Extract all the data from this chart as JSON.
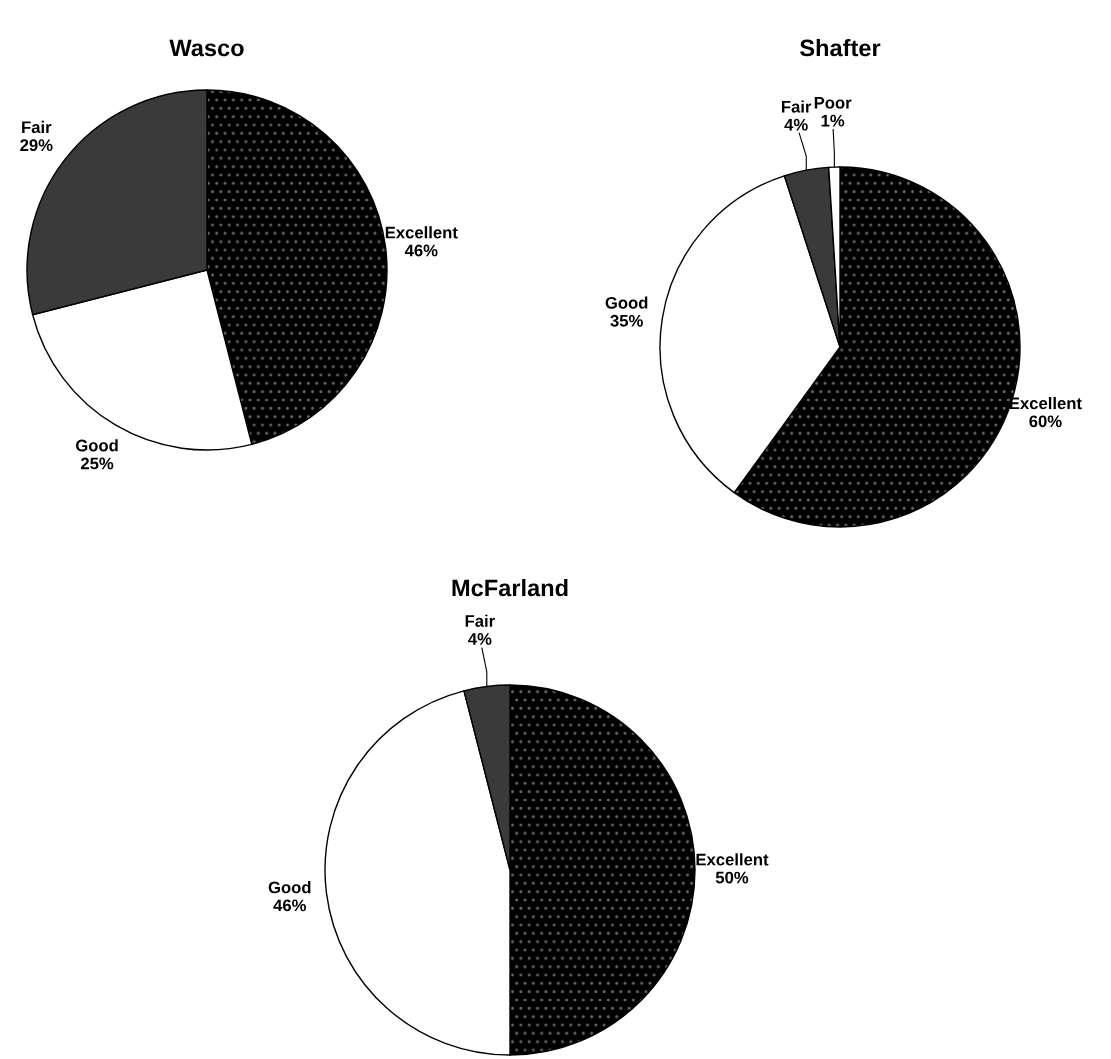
{
  "chart_data": [
    {
      "type": "pie",
      "title": "Wasco",
      "categories": [
        "Excellent",
        "Good",
        "Fair"
      ],
      "values": [
        46,
        25,
        29
      ],
      "value_labels": [
        "46%",
        "25%",
        "29%"
      ],
      "colors": [
        "#000000",
        "#ffffff",
        "#3a3a3a"
      ]
    },
    {
      "type": "pie",
      "title": "Shafter",
      "categories": [
        "Excellent",
        "Good",
        "Fair",
        "Poor"
      ],
      "values": [
        60,
        35,
        4,
        1
      ],
      "value_labels": [
        "60%",
        "35%",
        "4%",
        "1%"
      ],
      "colors": [
        "#000000",
        "#ffffff",
        "#3a3a3a",
        "#ffffff"
      ]
    },
    {
      "type": "pie",
      "title": "McFarland",
      "categories": [
        "Excellent",
        "Good",
        "Fair"
      ],
      "values": [
        50,
        46,
        4
      ],
      "value_labels": [
        "50%",
        "46%",
        "4%"
      ],
      "colors": [
        "#000000",
        "#ffffff",
        "#3a3a3a"
      ]
    }
  ]
}
